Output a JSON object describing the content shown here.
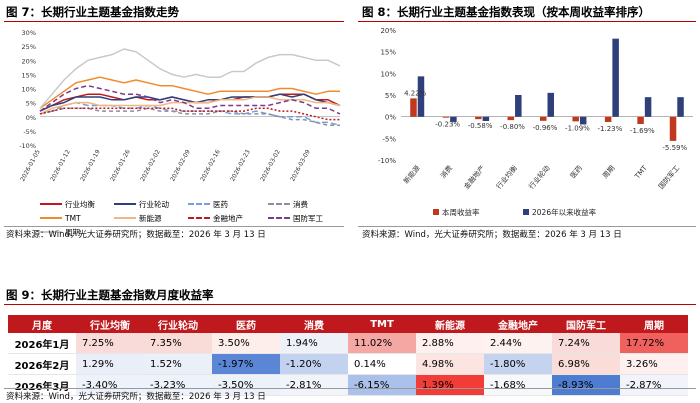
{
  "fig7": {
    "title": "图 7：长期行业主题基金指数走势",
    "source": "资料来源：Wind，光大证券研究所；数据截至：2026 年 3 月 13 日"
  },
  "fig8": {
    "title": "图 8：长期行业主题基金指数表现（按本周收益率排序）",
    "source": "资料来源：Wind，光大证券研究所；数据截至：2026 年 3 月 13 日"
  },
  "fig9": {
    "title": "图 9：长期行业主题基金指数月度收益率",
    "source": "资料来源：Wind，光大证券研究所；数据截至：2026 年 3 月 13 日",
    "header": [
      "月度",
      "行业均衡",
      "行业轮动",
      "医药",
      "消费",
      "TMT",
      "新能源",
      "金融地产",
      "国防军工",
      "周期"
    ],
    "rows": [
      {
        "label": "2026年1月",
        "cells": [
          "7.25%",
          "7.35%",
          "3.50%",
          "1.94%",
          "11.02%",
          "2.88%",
          "2.44%",
          "7.24%",
          "17.72%"
        ],
        "colors": [
          "#f9dcd9",
          "#f9dbd8",
          "#fdeeec",
          "#eef1f8",
          "#f5a8a3",
          "#fdf0ee",
          "#fdf2f0",
          "#f9dcd9",
          "#f0605c"
        ]
      },
      {
        "label": "2026年2月",
        "cells": [
          "1.29%",
          "1.52%",
          "-1.97%",
          "-1.20%",
          "0.14%",
          "4.98%",
          "-1.80%",
          "6.98%",
          "3.26%"
        ],
        "colors": [
          "#e9eef8",
          "#eaeff8",
          "#5b86d6",
          "#c3d3ef",
          "#ffffff",
          "#fce4e1",
          "#c4d4ef",
          "#fadcd8",
          "#fdf0ee"
        ]
      },
      {
        "label": "2026年3月",
        "cells": [
          "-3.40%",
          "-3.23%",
          "-3.50%",
          "-2.81%",
          "-6.15%",
          "1.39%",
          "-1.68%",
          "-8.93%",
          "-2.87%"
        ],
        "colors": [
          "#eef2fa",
          "#eef2fa",
          "#edf1fa",
          "#f1f4fb",
          "#a9c1eb",
          "#f13c37",
          "#f6f8fc",
          "#4d7cd1",
          "#f1f4fb"
        ]
      }
    ]
  },
  "chart_data": [
    {
      "type": "line",
      "title": "图 7：长期行业主题基金指数走势",
      "ylim": [
        -10,
        30
      ],
      "yticks": [
        "-10%",
        "-5%",
        "0%",
        "5%",
        "10%",
        "15%",
        "20%",
        "25%",
        "30%"
      ],
      "xticks": [
        "2026-01-05",
        "2026-01-12",
        "2026-01-19",
        "2026-01-26",
        "2026-02-02",
        "2026-02-09",
        "2026-02-16",
        "2026-02-23",
        "2026-03-02",
        "2026-03-09"
      ],
      "x": [
        1,
        3,
        5,
        7,
        9,
        11,
        13,
        15,
        17,
        19,
        21,
        23,
        25,
        27,
        29,
        31,
        33,
        35,
        37,
        39,
        41,
        43,
        45,
        47,
        49,
        51
      ],
      "series": [
        {
          "name": "行业均衡",
          "color": "#c0191d",
          "dash": "",
          "values": [
            2,
            4,
            6,
            7,
            8,
            8,
            7,
            6,
            7,
            6,
            6,
            7,
            6,
            5,
            5,
            6,
            6,
            7,
            7,
            7,
            8,
            8,
            8,
            6,
            6,
            4
          ]
        },
        {
          "name": "行业轮动",
          "color": "#2f3f7a",
          "dash": "",
          "values": [
            2,
            4,
            5,
            7,
            7,
            7,
            6,
            6,
            7,
            7,
            6,
            7,
            6,
            5,
            6,
            6,
            7,
            7,
            7,
            7,
            8,
            7,
            8,
            6,
            5,
            4
          ]
        },
        {
          "name": "医药",
          "color": "#7b9ed8",
          "dash": "6,3",
          "values": [
            1,
            2,
            4,
            5,
            4,
            4,
            4,
            3,
            3,
            4,
            3,
            2,
            2,
            2,
            2,
            2,
            1,
            1,
            2,
            1,
            0,
            0,
            0,
            -2,
            -2,
            -3
          ]
        },
        {
          "name": "消费",
          "color": "#8c8fa0",
          "dash": "4,3",
          "values": [
            1,
            2,
            3,
            3,
            3,
            2,
            2,
            2,
            2,
            3,
            2,
            2,
            1,
            1,
            1,
            2,
            2,
            1,
            1,
            1,
            0,
            -1,
            -1,
            -2,
            -3,
            -3
          ]
        },
        {
          "name": "TMT",
          "color": "#f08b2a",
          "dash": "",
          "values": [
            3,
            6,
            9,
            12,
            13,
            14,
            13,
            12,
            13,
            12,
            11,
            11,
            10,
            9,
            8,
            9,
            9,
            9,
            9,
            9,
            10,
            10,
            9,
            8,
            9,
            9
          ]
        },
        {
          "name": "新能源",
          "color": "#f0b783",
          "dash": "",
          "values": [
            1,
            3,
            4,
            5,
            5,
            4,
            4,
            4,
            4,
            4,
            4,
            5,
            5,
            5,
            5,
            6,
            6,
            6,
            7,
            7,
            6,
            6,
            6,
            5,
            5,
            4
          ]
        },
        {
          "name": "金融地产",
          "color": "#c0191d",
          "dash": "2,2",
          "values": [
            1,
            2,
            3,
            3,
            3,
            3,
            3,
            3,
            3,
            3,
            3,
            3,
            2,
            2,
            2,
            2,
            2,
            2,
            3,
            3,
            2,
            2,
            1,
            0,
            -1,
            -1
          ]
        },
        {
          "name": "国防军工",
          "color": "#7b3b8b",
          "dash": "5,3",
          "values": [
            2,
            5,
            8,
            10,
            11,
            10,
            9,
            8,
            8,
            7,
            5,
            6,
            5,
            3,
            3,
            4,
            4,
            4,
            4,
            4,
            5,
            6,
            5,
            3,
            3,
            1
          ]
        },
        {
          "name": "周期",
          "color": "#c9c9c9",
          "dash": "",
          "values": [
            3,
            8,
            13,
            17,
            20,
            21,
            22,
            24,
            23,
            20,
            17,
            15,
            14,
            15,
            14,
            14,
            16,
            16,
            19,
            21,
            22,
            22,
            21,
            20,
            20,
            18
          ]
        }
      ]
    },
    {
      "type": "bar",
      "title": "图 8：长期行业主题基金指数表现（按本周收益率排序）",
      "ylim": [
        -10,
        20
      ],
      "yticks": [
        "-10%",
        "-5%",
        "0%",
        "5%",
        "10%",
        "15%",
        "20%"
      ],
      "categories": [
        "新能源",
        "消费",
        "金融地产",
        "行业均衡",
        "行业轮动",
        "医药",
        "周期",
        "TMT",
        "国防军工"
      ],
      "series": [
        {
          "name": "本周收益率",
          "color": "#c0391d",
          "values": [
            4.22,
            -0.23,
            -0.58,
            -0.8,
            -0.96,
            -1.09,
            -1.23,
            -1.69,
            -5.59
          ],
          "labels": [
            "4.22%",
            "-0.23%",
            "-0.58%",
            "-0.80%",
            "-0.96%",
            "-1.09%",
            "-1.23%",
            "-1.69%",
            "-5.59%"
          ]
        },
        {
          "name": "2026年以来收益率",
          "color": "#2f3f7a",
          "values": [
            9.3,
            -1.2,
            -1.0,
            5.0,
            5.5,
            -1.8,
            18.0,
            4.5,
            4.5
          ]
        }
      ]
    }
  ]
}
